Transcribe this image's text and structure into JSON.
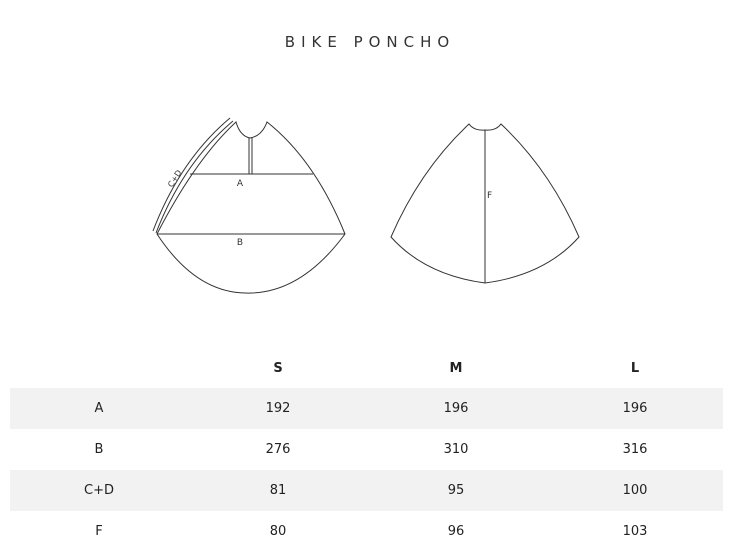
{
  "title": "BIKE PONCHO",
  "diagram": {
    "labels": {
      "a": "A",
      "b": "B",
      "cd": "C+D",
      "f": "F"
    }
  },
  "table": {
    "headers": [
      "",
      "S",
      "M",
      "L"
    ],
    "rows": [
      {
        "label": "A",
        "values": [
          "192",
          "196",
          "196"
        ]
      },
      {
        "label": "B",
        "values": [
          "276",
          "310",
          "316"
        ]
      },
      {
        "label": "C+D",
        "values": [
          "81",
          "95",
          "100"
        ]
      },
      {
        "label": "F",
        "values": [
          "80",
          "96",
          "103"
        ]
      }
    ]
  },
  "colors": {
    "row_shade": "#f2f2f2",
    "line": "#333333"
  }
}
